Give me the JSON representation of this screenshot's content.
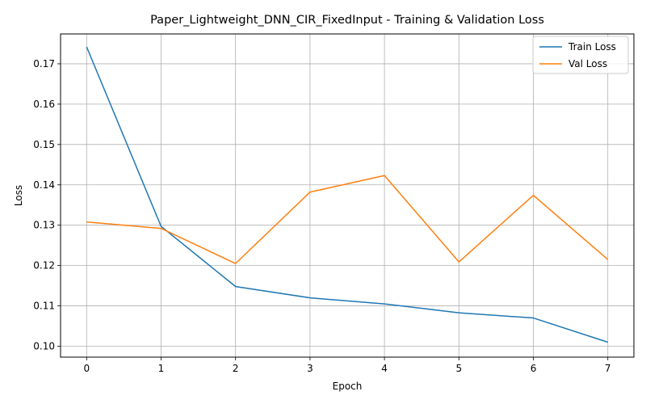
{
  "chart_data": {
    "type": "line",
    "title": "Paper_Lightweight_DNN_CIR_FixedInput - Training & Validation Loss",
    "xlabel": "Epoch",
    "ylabel": "Loss",
    "x": [
      0,
      1,
      2,
      3,
      4,
      5,
      6,
      7
    ],
    "xticks": [
      "0",
      "1",
      "2",
      "3",
      "4",
      "5",
      "6",
      "7"
    ],
    "yticks": [
      "0.10",
      "0.11",
      "0.12",
      "0.13",
      "0.14",
      "0.15",
      "0.16",
      "0.17"
    ],
    "xlim": [
      -0.35,
      7.35
    ],
    "ylim": [
      0.0973,
      0.1774
    ],
    "grid": true,
    "legend_position": "top-right",
    "series": [
      {
        "name": "Train Loss",
        "color": "#1f77b4",
        "values": [
          0.1742,
          0.1297,
          0.1148,
          0.112,
          0.1105,
          0.1083,
          0.107,
          0.101
        ]
      },
      {
        "name": "Val Loss",
        "color": "#ff7f0e",
        "values": [
          0.1308,
          0.1292,
          0.1205,
          0.1382,
          0.1423,
          0.1209,
          0.1374,
          0.1215
        ]
      }
    ]
  }
}
